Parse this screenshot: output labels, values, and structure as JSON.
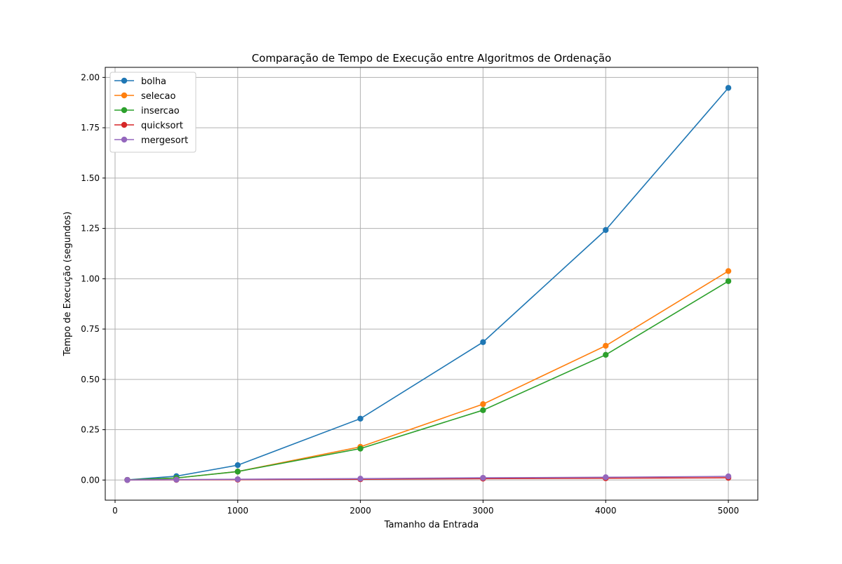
{
  "chart_data": {
    "type": "line",
    "title": "Comparação de Tempo de Execução entre Algoritmos de Ordenação",
    "xlabel": "Tamanho da Entrada",
    "ylabel": "Tempo de Execução (segundos)",
    "x": [
      100,
      500,
      1000,
      2000,
      3000,
      4000,
      5000
    ],
    "xlim": [
      -80,
      5240
    ],
    "ylim": [
      -0.1,
      2.05
    ],
    "xticks": [
      0,
      1000,
      2000,
      3000,
      4000,
      5000
    ],
    "xtick_labels": [
      "0",
      "1000",
      "2000",
      "3000",
      "4000",
      "5000"
    ],
    "yticks": [
      0.0,
      0.25,
      0.5,
      0.75,
      1.0,
      1.25,
      1.5,
      1.75,
      2.0
    ],
    "ytick_labels": [
      "0.00",
      "0.25",
      "0.50",
      "0.75",
      "1.00",
      "1.25",
      "1.50",
      "1.75",
      "2.00"
    ],
    "grid": true,
    "legend_position": "upper-left",
    "marker": "circle",
    "series": [
      {
        "name": "bolha",
        "color": "#1f77b4",
        "values": [
          0.001,
          0.019,
          0.074,
          0.305,
          0.685,
          1.242,
          1.948
        ]
      },
      {
        "name": "selecao",
        "color": "#ff7f0e",
        "values": [
          0.0005,
          0.01,
          0.042,
          0.165,
          0.377,
          0.667,
          1.038
        ]
      },
      {
        "name": "insercao",
        "color": "#2ca02c",
        "values": [
          0.0005,
          0.01,
          0.042,
          0.156,
          0.347,
          0.622,
          0.988
        ]
      },
      {
        "name": "quicksort",
        "color": "#d62728",
        "values": [
          0.0001,
          0.001,
          0.002,
          0.004,
          0.007,
          0.009,
          0.011
        ]
      },
      {
        "name": "mergesort",
        "color": "#9467bd",
        "values": [
          0.0002,
          0.002,
          0.004,
          0.007,
          0.011,
          0.014,
          0.018
        ]
      }
    ]
  }
}
